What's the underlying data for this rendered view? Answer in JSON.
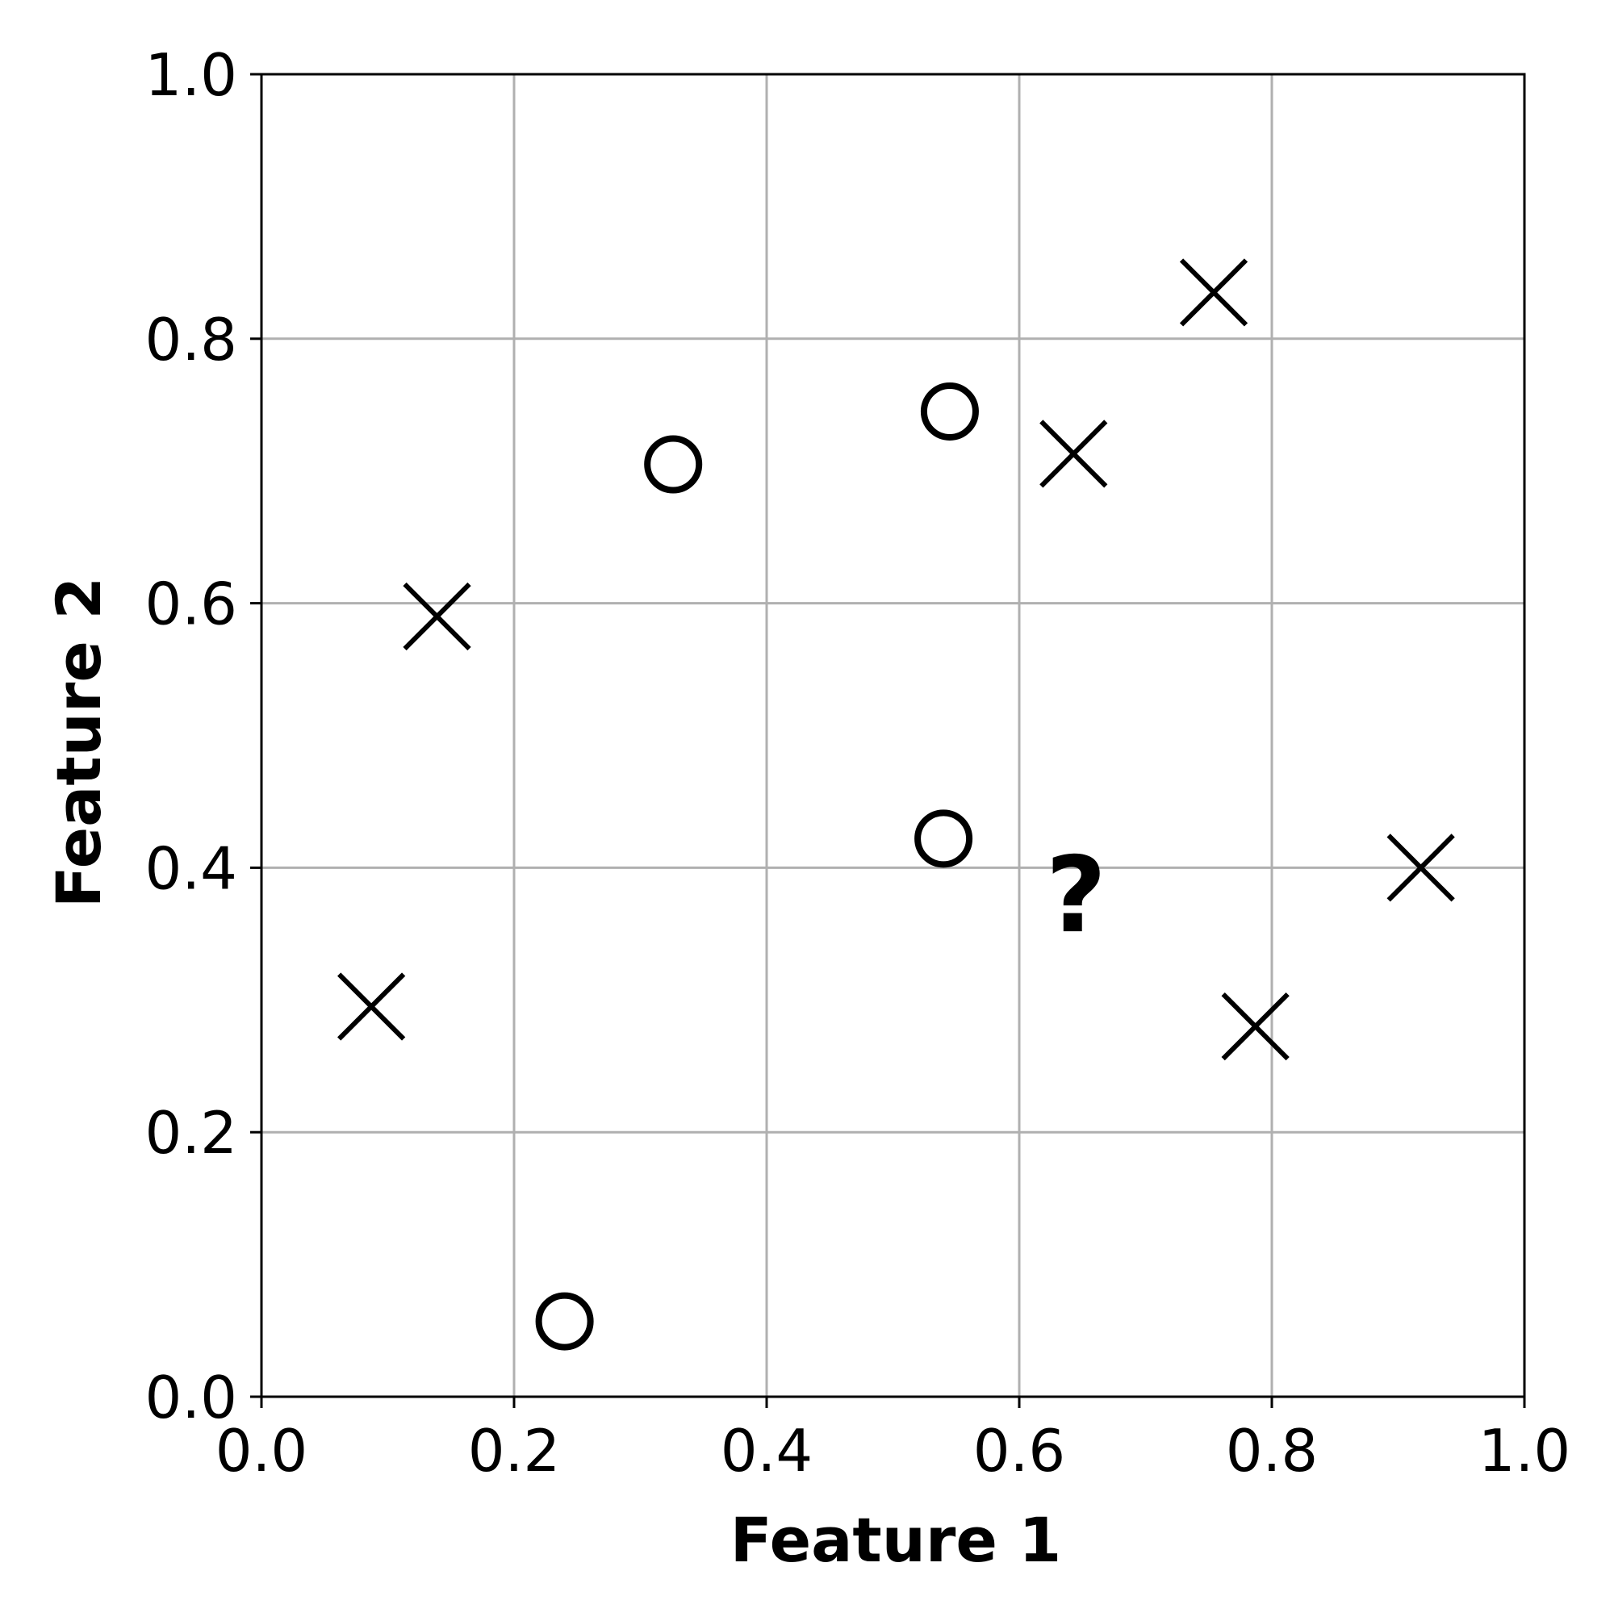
{
  "chart_data": {
    "type": "scatter",
    "title": "",
    "xlabel": "Feature 1",
    "ylabel": "Feature 2",
    "xlim": [
      0.0,
      1.0
    ],
    "ylim": [
      0.0,
      1.0
    ],
    "x_ticks": [
      "0.0",
      "0.2",
      "0.4",
      "0.6",
      "0.8",
      "1.0"
    ],
    "y_ticks": [
      "0.0",
      "0.2",
      "0.4",
      "0.6",
      "0.8",
      "1.0"
    ],
    "grid": true,
    "legend": false,
    "series": [
      {
        "marker": "circle",
        "color": "#000000",
        "points": [
          {
            "x": 0.24,
            "y": 0.057
          },
          {
            "x": 0.326,
            "y": 0.705
          },
          {
            "x": 0.545,
            "y": 0.745
          },
          {
            "x": 0.54,
            "y": 0.422
          }
        ]
      },
      {
        "marker": "x",
        "color": "#000000",
        "points": [
          {
            "x": 0.087,
            "y": 0.295
          },
          {
            "x": 0.139,
            "y": 0.59
          },
          {
            "x": 0.643,
            "y": 0.713
          },
          {
            "x": 0.754,
            "y": 0.835
          },
          {
            "x": 0.787,
            "y": 0.28
          },
          {
            "x": 0.918,
            "y": 0.4
          }
        ]
      }
    ],
    "annotations": [
      {
        "text": "?",
        "x": 0.645,
        "y": 0.38
      }
    ],
    "colors": {
      "grid": "#b0b0b0",
      "axis": "#000000",
      "marker": "#000000"
    }
  }
}
